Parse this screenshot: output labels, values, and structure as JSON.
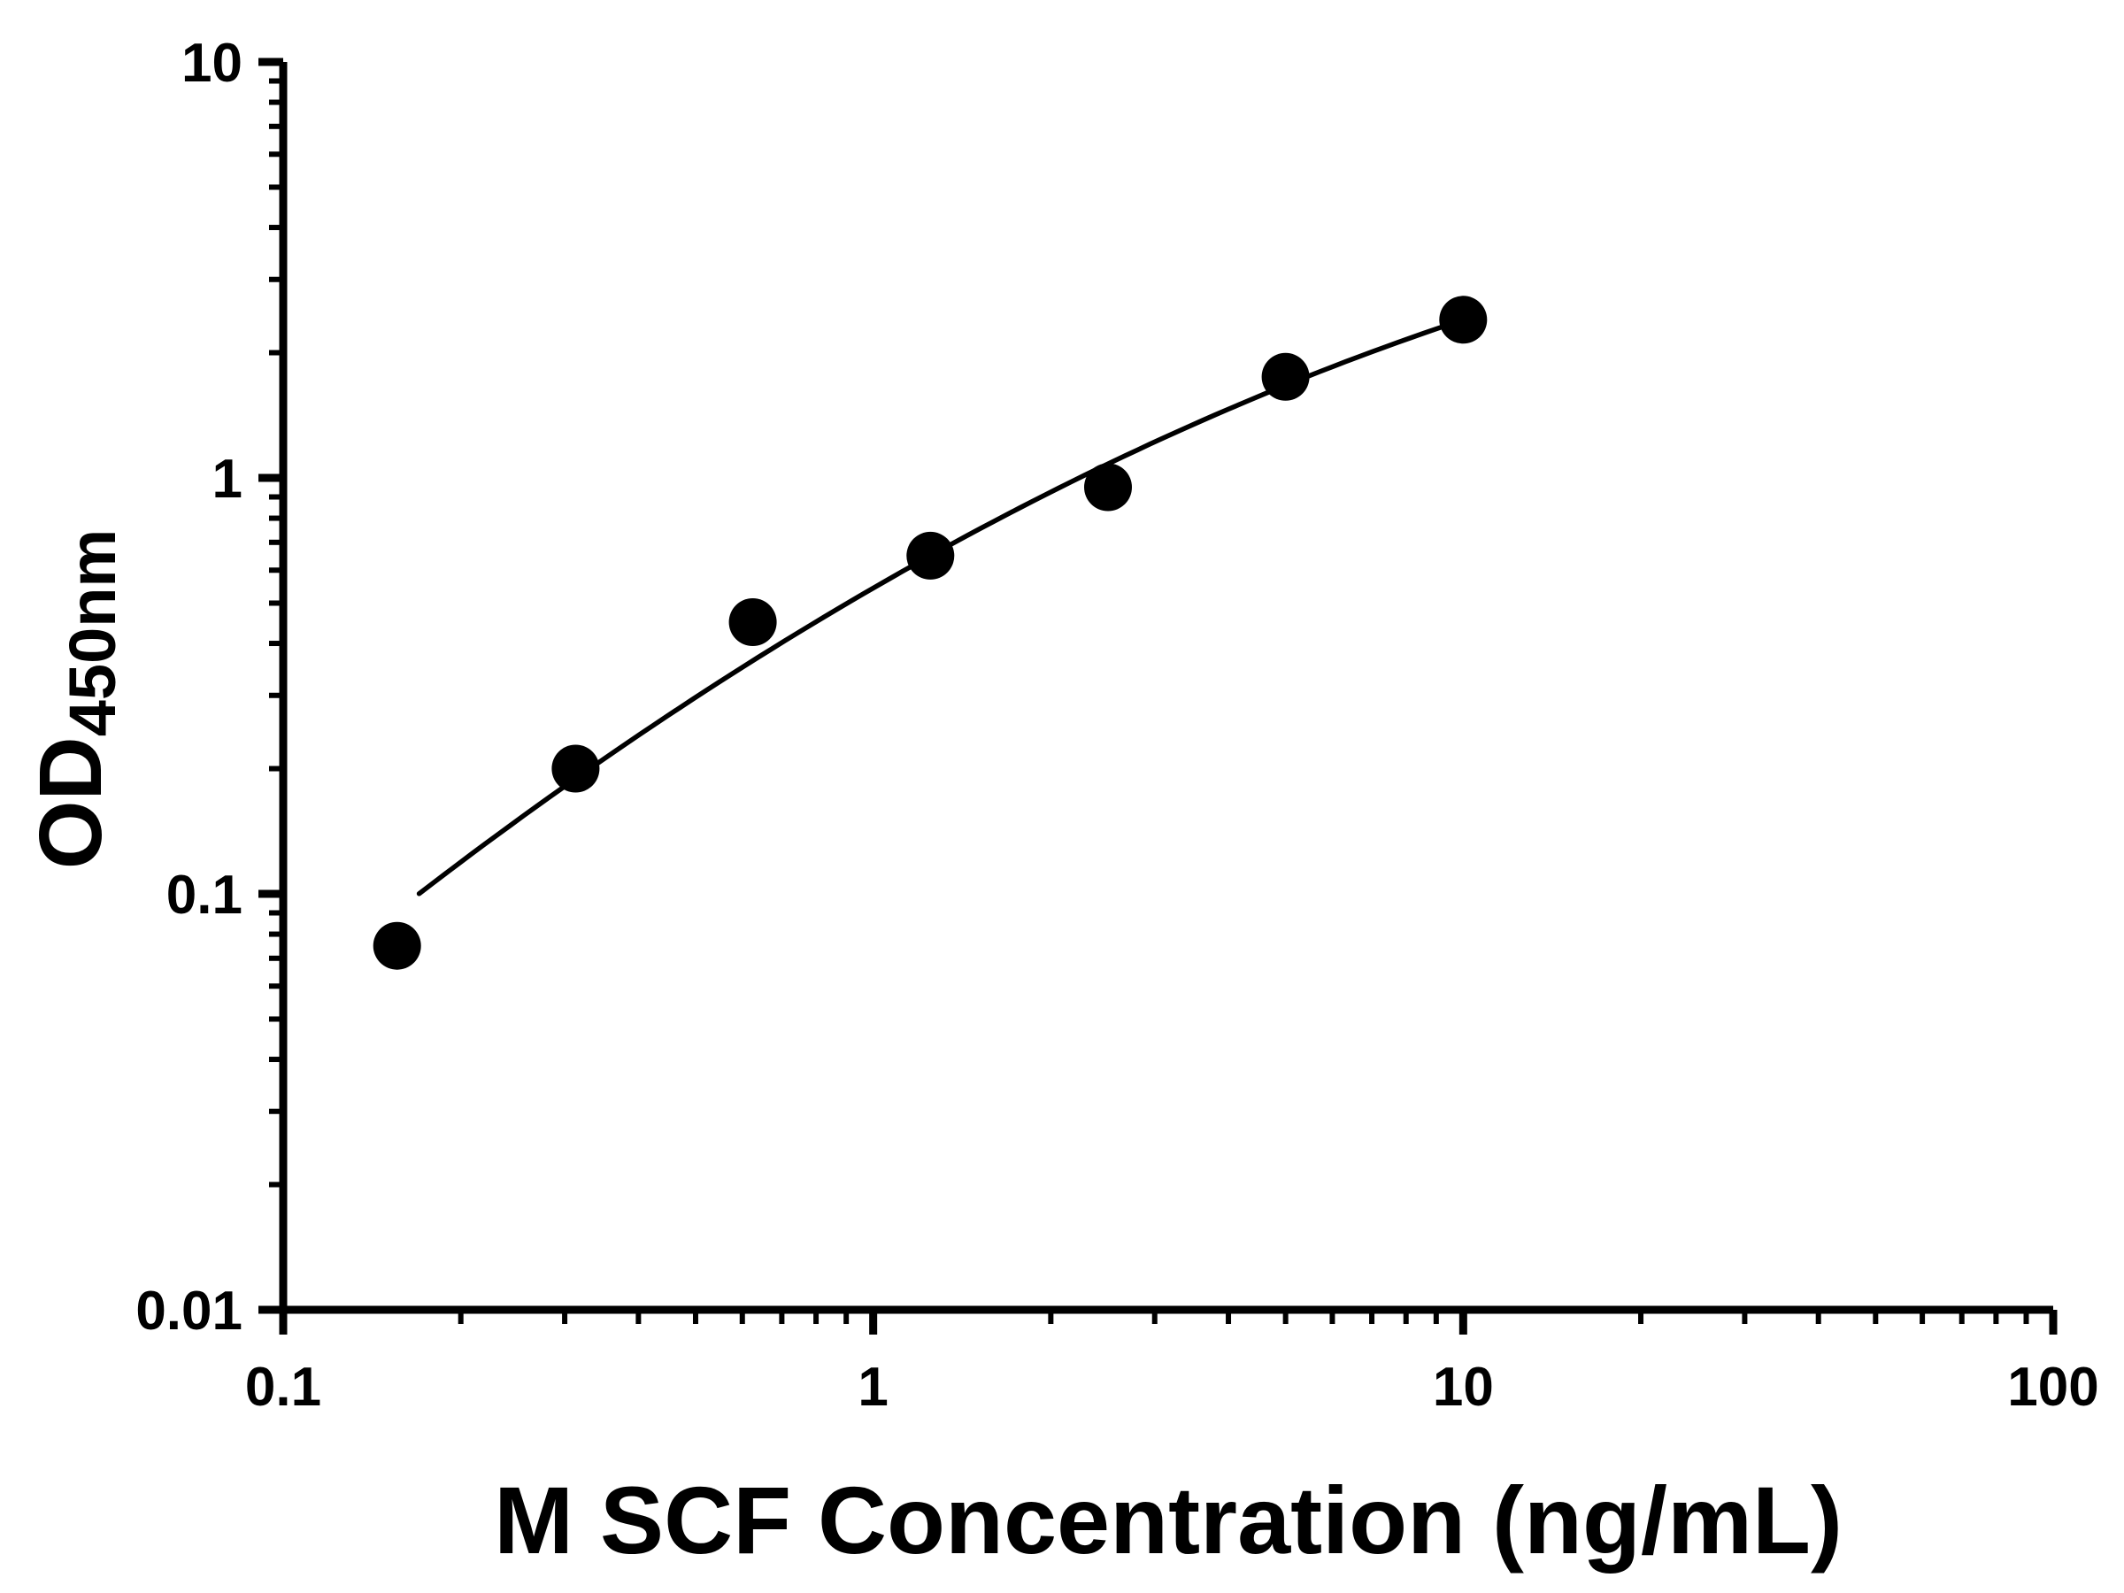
{
  "figure": {
    "background": "#ffffff"
  },
  "chart_data": {
    "type": "scatter",
    "title": "",
    "xlabel": "M SCF Concentration (ng/mL)",
    "ylabel_main": "OD",
    "ylabel_sub": "450nm",
    "x_scale": "log10",
    "y_scale": "log10",
    "xlim": [
      0.1,
      100
    ],
    "ylim": [
      0.01,
      10
    ],
    "x_ticks": [
      0.1,
      1,
      10,
      100
    ],
    "x_tick_labels": [
      "0.1",
      "1",
      "10",
      "100"
    ],
    "y_ticks": [
      0.01,
      0.1,
      1,
      10
    ],
    "y_tick_labels": [
      "0.01",
      "0.1",
      "1",
      "10"
    ],
    "grid": false,
    "legend": null,
    "axis_color": "#000000",
    "marker_color": "#000000",
    "line_color": "#000000",
    "points": [
      {
        "x": 0.156,
        "y": 0.075
      },
      {
        "x": 0.313,
        "y": 0.2
      },
      {
        "x": 0.625,
        "y": 0.45
      },
      {
        "x": 1.25,
        "y": 0.65
      },
      {
        "x": 2.5,
        "y": 0.95
      },
      {
        "x": 5,
        "y": 1.75
      },
      {
        "x": 10,
        "y": 2.4
      }
    ],
    "fit_curve": {
      "model": "log10(y) = c0 + c1*log10(x) + c2*log10(x)^2",
      "c0": -0.2649,
      "c1": 0.8199,
      "c2": -0.175,
      "x_start": 0.17,
      "x_end": 10
    }
  }
}
